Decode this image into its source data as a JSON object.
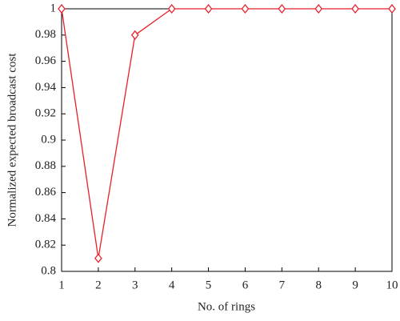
{
  "chart_data": {
    "type": "line",
    "xlabel": "No. of rings",
    "ylabel": "Normalized expected broadcast cost",
    "x": [
      1,
      2,
      3,
      4,
      5,
      6,
      7,
      8,
      9,
      10
    ],
    "series": [
      {
        "color": "#e8202a",
        "marker": "diamond",
        "values": [
          1,
          0.81,
          0.98,
          1,
          1,
          1,
          1,
          1,
          1,
          1
        ]
      }
    ],
    "xlim": [
      1,
      10
    ],
    "xticks": [
      1,
      2,
      3,
      4,
      5,
      6,
      7,
      8,
      9,
      10
    ],
    "ylim": [
      0.8,
      1
    ],
    "yticks": [
      0.8,
      0.82,
      0.84,
      0.86,
      0.88,
      0.9,
      0.92,
      0.94,
      0.96,
      0.98,
      1
    ],
    "grid": false
  }
}
